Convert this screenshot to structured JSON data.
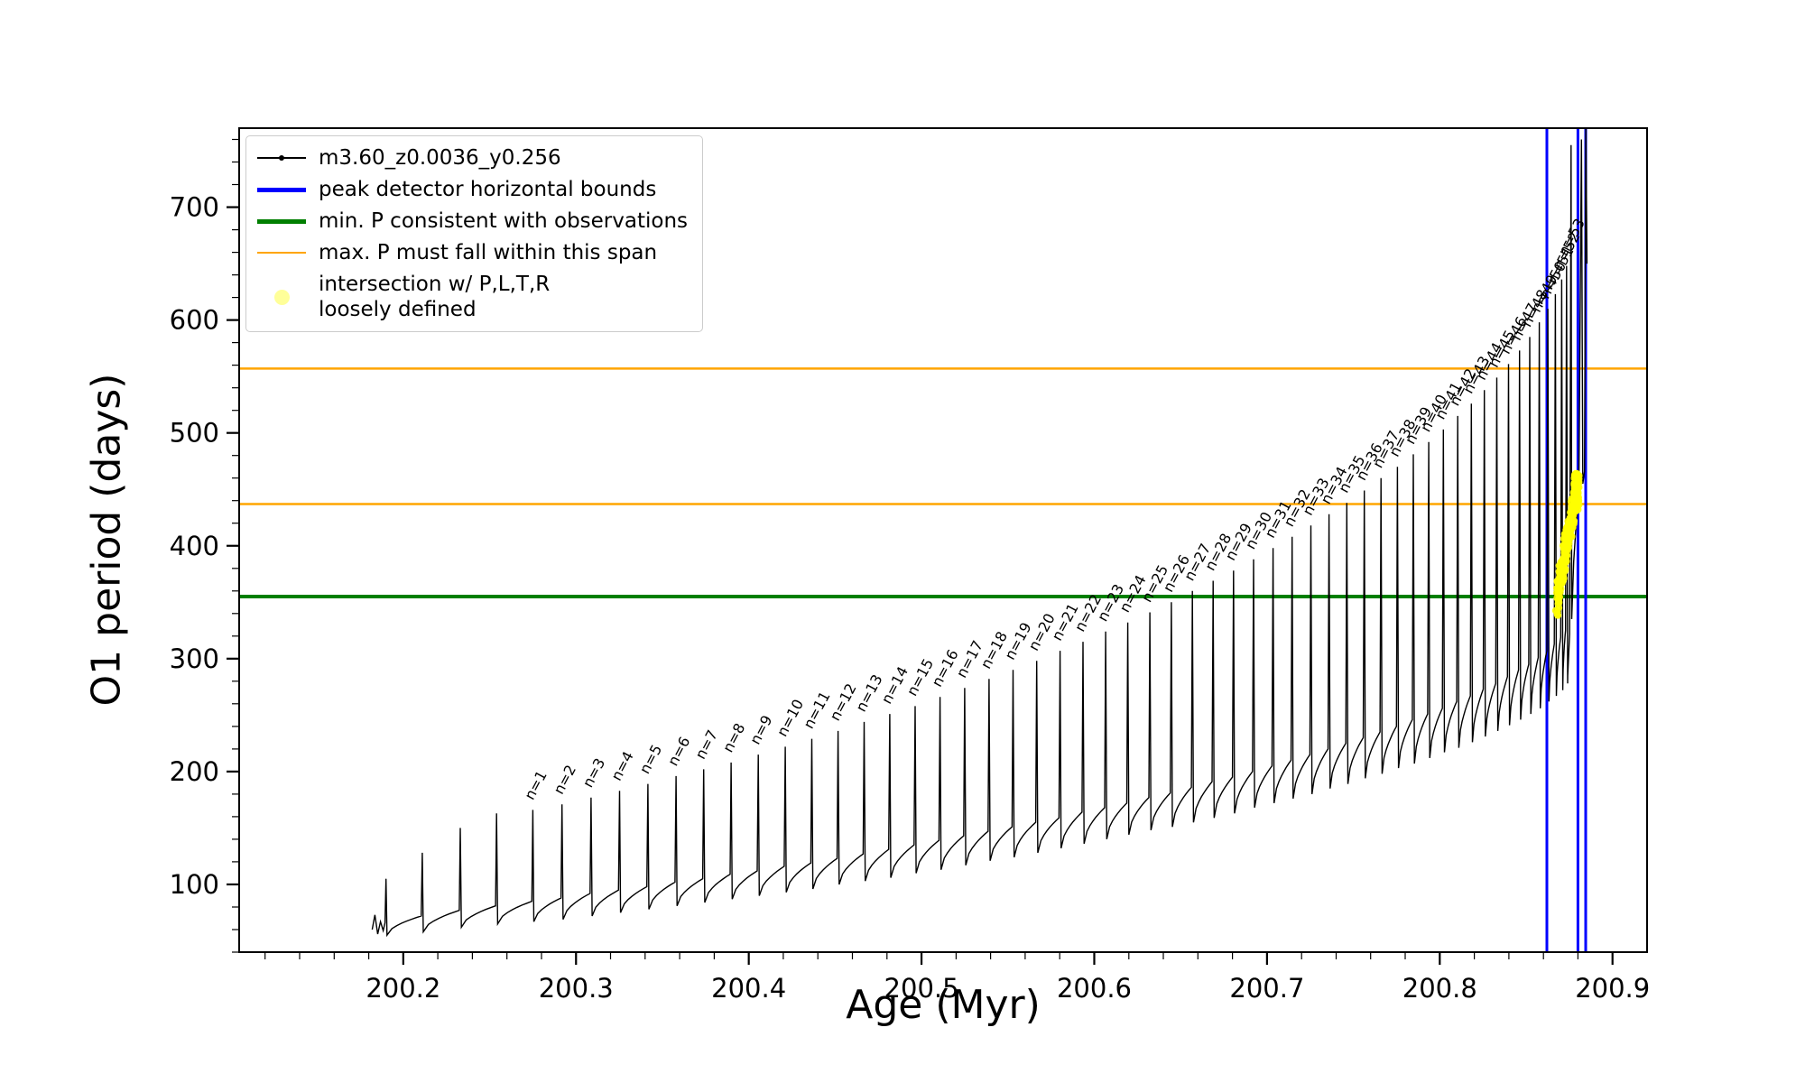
{
  "figure": {
    "background": "#ffffff"
  },
  "legend": {
    "items": [
      {
        "label": "m3.60_z0.0036_y0.256",
        "swatch": "line-marker",
        "color": "#000000"
      },
      {
        "label": "peak detector horizontal bounds",
        "swatch": "thick-line",
        "color": "#0000ff"
      },
      {
        "label": "min. P consistent with observations",
        "swatch": "thick-line",
        "color": "#007f00"
      },
      {
        "label": "max. P must fall within this span",
        "swatch": "line",
        "color": "#ffa500"
      },
      {
        "label": "intersection w/ P,L,T,R\nloosely defined",
        "swatch": "dot",
        "color": "rgba(255,255,0,0.4)"
      }
    ]
  },
  "chart_data": {
    "type": "line",
    "title": "",
    "xlabel": "Age (Myr)",
    "ylabel": "O1 period (days)",
    "xlim": [
      200.105,
      200.92
    ],
    "ylim": [
      40,
      770
    ],
    "xticks": [
      200.2,
      200.3,
      200.4,
      200.5,
      200.6,
      200.7,
      200.8,
      200.9
    ],
    "xtick_labels": [
      "200.2",
      "200.3",
      "200.4",
      "200.5",
      "200.6",
      "200.7",
      "200.8",
      "200.9"
    ],
    "yticks": [
      100,
      200,
      300,
      400,
      500,
      600,
      700
    ],
    "ytick_labels": [
      "100",
      "200",
      "300",
      "400",
      "500",
      "600",
      "700"
    ],
    "x_minor_step": 0.02,
    "y_minor_step": 20,
    "series_name": "m3.60_z0.0036_y0.256",
    "series_color": "#000000",
    "spike_columns": [
      "n_label",
      "age_myr",
      "peak_period_days",
      "pre_spike_period_days",
      "post_spike_period_days"
    ],
    "spikes": [
      [
        null,
        200.19,
        105,
        66,
        55
      ],
      [
        null,
        200.211,
        128,
        72,
        58
      ],
      [
        null,
        200.233,
        150,
        77,
        62
      ],
      [
        null,
        200.254,
        163,
        81,
        65
      ],
      [
        1,
        200.275,
        166,
        85,
        67
      ],
      [
        2,
        200.2919,
        171,
        88,
        69
      ],
      [
        3,
        200.3087,
        177,
        92,
        72
      ],
      [
        4,
        200.3252,
        183,
        95,
        75
      ],
      [
        5,
        200.3416,
        189,
        98,
        78
      ],
      [
        6,
        200.3579,
        196,
        102,
        81
      ],
      [
        7,
        200.3739,
        202,
        105,
        84
      ],
      [
        8,
        200.3898,
        208,
        109,
        87
      ],
      [
        9,
        200.4055,
        215,
        112,
        90
      ],
      [
        10,
        200.4211,
        222,
        116,
        93
      ],
      [
        11,
        200.4365,
        229,
        119,
        96
      ],
      [
        12,
        200.4517,
        236,
        123,
        100
      ],
      [
        13,
        200.4668,
        244,
        127,
        103
      ],
      [
        14,
        200.4816,
        251,
        131,
        106
      ],
      [
        15,
        200.4963,
        258,
        135,
        110
      ],
      [
        16,
        200.5107,
        266,
        139,
        113
      ],
      [
        17,
        200.525,
        274,
        143,
        117
      ],
      [
        18,
        200.5391,
        282,
        147,
        121
      ],
      [
        19,
        200.553,
        290,
        151,
        124
      ],
      [
        20,
        200.5667,
        298,
        155,
        128
      ],
      [
        21,
        200.5802,
        307,
        159,
        132
      ],
      [
        22,
        200.5935,
        315,
        164,
        136
      ],
      [
        23,
        200.6066,
        324,
        168,
        140
      ],
      [
        24,
        200.6194,
        332,
        172,
        144
      ],
      [
        25,
        200.6322,
        341,
        177,
        148
      ],
      [
        26,
        200.6446,
        350,
        181,
        151
      ],
      [
        27,
        200.6568,
        360,
        186,
        155
      ],
      [
        28,
        200.6688,
        369,
        191,
        159
      ],
      [
        29,
        200.6806,
        378,
        195,
        163
      ],
      [
        30,
        200.6922,
        388,
        200,
        168
      ],
      [
        31,
        200.7035,
        398,
        205,
        172
      ],
      [
        32,
        200.7145,
        408,
        210,
        176
      ],
      [
        33,
        200.7254,
        418,
        215,
        180
      ],
      [
        34,
        200.7359,
        428,
        220,
        185
      ],
      [
        35,
        200.7462,
        438,
        225,
        189
      ],
      [
        36,
        200.7563,
        449,
        230,
        194
      ],
      [
        37,
        200.766,
        460,
        235,
        198
      ],
      [
        38,
        200.7755,
        470,
        240,
        203
      ],
      [
        39,
        200.7847,
        481,
        246,
        207
      ],
      [
        40,
        200.7936,
        492,
        251,
        212
      ],
      [
        41,
        200.8021,
        503,
        256,
        217
      ],
      [
        42,
        200.8104,
        515,
        262,
        221
      ],
      [
        43,
        200.8183,
        526,
        267,
        226
      ],
      [
        44,
        200.8258,
        538,
        273,
        231
      ],
      [
        45,
        200.833,
        549,
        278,
        236
      ],
      [
        46,
        200.8398,
        561,
        284,
        241
      ],
      [
        47,
        200.8462,
        573,
        290,
        246
      ],
      [
        48,
        200.8521,
        585,
        295,
        251
      ],
      [
        49,
        200.8576,
        598,
        301,
        256
      ],
      [
        50,
        200.8626,
        610,
        307,
        262
      ],
      [
        51,
        200.8669,
        623,
        313,
        267
      ],
      [
        52,
        200.8706,
        636,
        319,
        272
      ],
      [
        53,
        200.8734,
        648,
        325,
        278
      ]
    ],
    "lead_in_points": [
      [
        200.182,
        60
      ],
      [
        200.1836,
        73
      ],
      [
        200.1852,
        56
      ],
      [
        200.1868,
        67
      ],
      [
        200.1884,
        59
      ]
    ],
    "tail_points": [
      [
        200.8741,
        285
      ],
      [
        200.8752,
        322
      ],
      [
        200.876,
        755
      ],
      [
        200.8764,
        335
      ],
      [
        200.8775,
        386
      ],
      [
        200.879,
        420
      ],
      [
        200.8805,
        448
      ],
      [
        200.882,
        760
      ],
      [
        200.8828,
        455
      ],
      [
        200.8838,
        466
      ],
      [
        200.8846,
        770
      ],
      [
        200.8852,
        650
      ]
    ],
    "hlines": [
      {
        "y": 557,
        "color": "#ffa500",
        "label": "max. P must fall within this span"
      },
      {
        "y": 437,
        "color": "#ffa500",
        "label": "max. P must fall within this span"
      },
      {
        "y": 355,
        "color": "#007f00",
        "label": "min. P consistent with observations"
      }
    ],
    "vlines": [
      {
        "x": 200.862,
        "color": "#0000ff",
        "label": "peak detector horizontal bounds"
      },
      {
        "x": 200.88,
        "color": "#0000ff",
        "label": "peak detector horizontal bounds"
      },
      {
        "x": 200.8845,
        "color": "#0000ff",
        "label": "peak detector horizontal bounds"
      }
    ],
    "yellow_blob": {
      "label": "intersection w/ P,L,T,R loosely defined",
      "color": "#ffff00",
      "x_range": [
        200.8678,
        200.8802
      ],
      "y_range": [
        348,
        465
      ],
      "n_points": 300,
      "dot_radius_px": 4
    },
    "legend_position": "upper left",
    "grid": false
  }
}
